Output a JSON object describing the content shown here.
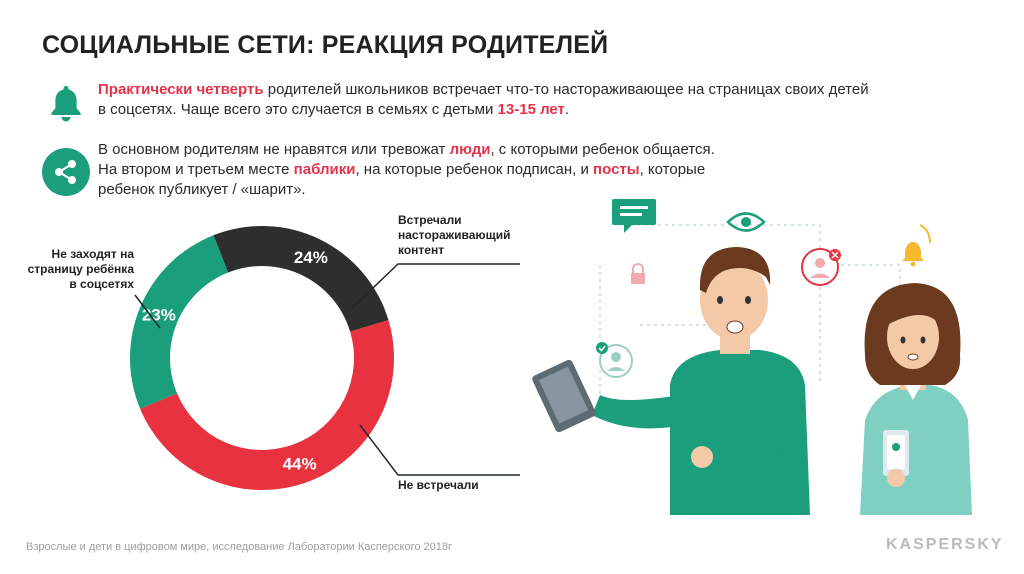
{
  "title": "СОЦИАЛЬНЫЕ СЕТИ: РЕАКЦИЯ РОДИТЕЛЕЙ",
  "bullet1": {
    "icon": "bell-icon",
    "highlight": "Практически четверть",
    "line1_rest": " родителей школьников встречает что-то настораживающее на страницах своих детей",
    "line2_pre": "в соцсетях. Чаще всего это случается в семьях с детьми ",
    "line2_highlight": "13-15 лет",
    "line2_post": "."
  },
  "bullet2": {
    "icon": "share-icon",
    "line1_pre": "В основном родителям не нравятся или тревожат ",
    "line1_hl": "люди",
    "line1_post": ", с которыми ребенок общается.",
    "line2_pre": "На втором и третьем месте ",
    "line2_hl1": "паблики",
    "line2_mid": ", на которые ребенок подписан, и ",
    "line2_hl2": "посты",
    "line2_post": ", которые",
    "line3": "ребенок публикует / «шарит»."
  },
  "chart_data": {
    "type": "pie",
    "donut": true,
    "slices": [
      {
        "label": "Встречали настораживающий контент",
        "value": 24,
        "display": "24%",
        "color": "#2e2e2e"
      },
      {
        "label": "Не встречали",
        "value": 44,
        "display": "44%",
        "color": "#e8323f"
      },
      {
        "label": "Не заходят на страницу ребёнка в соцсетях",
        "value": 23,
        "display": "23%",
        "color": "#1a9e7c"
      }
    ],
    "label_lines": {
      "seen": [
        "Встречали",
        "настораживающий",
        "контент"
      ],
      "not_seen": [
        "Не встречали"
      ],
      "no_visit": [
        "Не заходят на",
        "страницу ребёнка",
        "в соцсетях"
      ]
    }
  },
  "footer": "Взрослые и дети в цифровом мире, исследование Лаборатории Касперского 2018г",
  "logo": "KASPERSKY"
}
